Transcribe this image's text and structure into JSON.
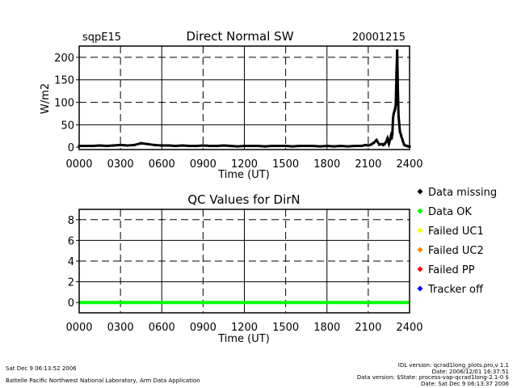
{
  "chart_data": [
    {
      "type": "scatter",
      "site": "sqpE15",
      "title": "Direct Normal SW",
      "date": "20001215",
      "xlabel": "Time (UT)",
      "ylabel": "W/m2",
      "xlim": [
        0,
        2400
      ],
      "ylim": [
        -5,
        225
      ],
      "xticks": [
        "0000",
        "0300",
        "0600",
        "0900",
        "1200",
        "1500",
        "1800",
        "2100",
        "2400"
      ],
      "yticks": [
        "0",
        "50",
        "100",
        "150",
        "200"
      ],
      "grid": true,
      "series": [
        {
          "color": "#000000",
          "x": [
            0,
            50,
            100,
            150,
            200,
            250,
            300,
            350,
            400,
            450,
            500,
            550,
            600,
            650,
            700,
            750,
            800,
            850,
            900,
            950,
            1000,
            1050,
            1100,
            1150,
            1200,
            1250,
            1300,
            1350,
            1400,
            1450,
            1500,
            1550,
            1600,
            1650,
            1700,
            1750,
            1800,
            1850,
            1900,
            1950,
            2000,
            2050,
            2080,
            2100,
            2120,
            2140,
            2160,
            2180,
            2200,
            2210,
            2220,
            2230,
            2240,
            2250,
            2260,
            2265,
            2270,
            2275,
            2280,
            2285,
            2290,
            2295,
            2300,
            2305,
            2310,
            2315,
            2320,
            2330,
            2340,
            2350,
            2360,
            2370,
            2380,
            2390,
            2400
          ],
          "y": [
            3,
            3,
            3,
            4,
            3,
            4,
            5,
            4,
            5,
            9,
            7,
            5,
            4,
            4,
            3,
            4,
            3,
            3,
            4,
            3,
            3,
            4,
            3,
            2,
            3,
            3,
            3,
            2,
            3,
            3,
            3,
            2,
            3,
            3,
            3,
            2,
            3,
            2,
            3,
            2,
            3,
            3,
            5,
            4,
            6,
            10,
            16,
            6,
            7,
            5,
            8,
            12,
            20,
            8,
            18,
            25,
            20,
            30,
            65,
            75,
            80,
            85,
            95,
            165,
            215,
            130,
            70,
            35,
            25,
            15,
            6,
            4,
            3,
            2,
            2
          ]
        }
      ]
    },
    {
      "type": "line",
      "title": "QC Values for DirN",
      "xlabel": "Time (UT)",
      "xlim": [
        0,
        2400
      ],
      "ylim": [
        -1,
        9
      ],
      "xticks": [
        "0000",
        "0300",
        "0600",
        "0900",
        "1200",
        "1500",
        "1800",
        "2100",
        "2400"
      ],
      "yticks": [
        "0",
        "2",
        "4",
        "6",
        "8"
      ],
      "grid": true,
      "series": [
        {
          "color": "#00ff00",
          "x": [
            0,
            2400
          ],
          "y": [
            0,
            0
          ]
        }
      ]
    }
  ],
  "legend": [
    {
      "label": "Data missing",
      "color": "#000000"
    },
    {
      "label": "Data OK",
      "color": "#00ff00"
    },
    {
      "label": "Failed UC1",
      "color": "#ffff00"
    },
    {
      "label": "Failed UC2",
      "color": "#ff8800"
    },
    {
      "label": "Failed PP",
      "color": "#ff0000"
    },
    {
      "label": "Tracker off",
      "color": "#0000ff"
    }
  ],
  "footer": {
    "left_date": "Sat Dec  9 06:13:52 2006",
    "left_org": "Battelle Pacific Northwest National Laboratory, Arm Data Application",
    "right_lines": [
      "IDL version: qcrad1long_plots.pro,v 1.1",
      "Date: 2006/12/01 16:37:51",
      "Data version: $State: process-vap-qcrad1long-2.1-0 $",
      "Date: Sat Dec  9 06:13:37 2006"
    ]
  }
}
